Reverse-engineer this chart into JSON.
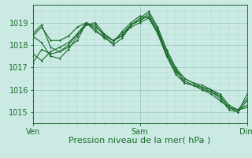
{
  "bg_color": "#cceae4",
  "grid_color_major": "#99ccc4",
  "grid_color_minor": "#aad8d0",
  "line_color": "#1a6b2a",
  "xlabel": "Pression niveau de la mer( hPa )",
  "xtick_labels": [
    "Ven",
    "Sam",
    "Dim"
  ],
  "xtick_positions": [
    0,
    96,
    192
  ],
  "ylim": [
    1014.5,
    1019.8
  ],
  "yticks": [
    1015,
    1016,
    1017,
    1018,
    1019
  ],
  "xlim": [
    0,
    192
  ],
  "lines": [
    [
      0,
      1018.4,
      8,
      1018.8,
      16,
      1018.2,
      24,
      1018.2,
      32,
      1018.4,
      40,
      1018.8,
      48,
      1019.0,
      56,
      1018.7,
      64,
      1018.3,
      72,
      1018.1,
      80,
      1018.6,
      88,
      1019.0,
      96,
      1019.3,
      104,
      1019.2,
      112,
      1018.6,
      120,
      1017.6,
      128,
      1016.9,
      136,
      1016.5,
      144,
      1016.3,
      152,
      1016.2,
      160,
      1016.0,
      168,
      1015.8,
      176,
      1015.3,
      184,
      1015.1,
      192,
      1015.2
    ],
    [
      0,
      1017.6,
      8,
      1017.3,
      16,
      1017.7,
      24,
      1017.9,
      32,
      1018.1,
      40,
      1018.5,
      48,
      1019.0,
      56,
      1018.6,
      64,
      1018.4,
      72,
      1018.2,
      80,
      1018.5,
      88,
      1018.9,
      96,
      1019.2,
      104,
      1019.5,
      112,
      1018.8,
      120,
      1017.8,
      128,
      1017.0,
      136,
      1016.5,
      144,
      1016.3,
      152,
      1016.1,
      160,
      1016.0,
      168,
      1015.7,
      176,
      1015.2,
      184,
      1015.0,
      192,
      1015.5
    ],
    [
      0,
      1018.5,
      8,
      1018.9,
      16,
      1017.9,
      24,
      1017.7,
      32,
      1018.0,
      40,
      1018.5,
      48,
      1018.9,
      56,
      1018.9,
      64,
      1018.4,
      72,
      1018.0,
      80,
      1018.3,
      88,
      1018.9,
      96,
      1019.1,
      104,
      1019.4,
      112,
      1018.7,
      120,
      1017.7,
      128,
      1016.9,
      136,
      1016.3,
      144,
      1016.2,
      152,
      1016.0,
      160,
      1015.9,
      168,
      1015.6,
      176,
      1015.1,
      184,
      1015.0,
      192,
      1015.8
    ],
    [
      0,
      1017.2,
      8,
      1017.8,
      16,
      1017.6,
      24,
      1017.7,
      32,
      1017.9,
      40,
      1018.2,
      48,
      1019.0,
      56,
      1018.8,
      64,
      1018.5,
      72,
      1018.2,
      80,
      1018.4,
      88,
      1018.9,
      96,
      1019.1,
      104,
      1019.3,
      112,
      1018.6,
      120,
      1017.5,
      128,
      1016.8,
      136,
      1016.4,
      144,
      1016.2,
      152,
      1016.1,
      160,
      1015.9,
      168,
      1015.7,
      176,
      1015.2,
      184,
      1015.1,
      192,
      1015.3
    ],
    [
      0,
      1018.4,
      8,
      1018.1,
      16,
      1017.5,
      24,
      1017.4,
      32,
      1017.8,
      40,
      1018.4,
      48,
      1018.9,
      56,
      1019.0,
      64,
      1018.5,
      72,
      1018.2,
      80,
      1018.4,
      88,
      1018.8,
      96,
      1019.0,
      104,
      1019.2,
      112,
      1018.5,
      120,
      1017.5,
      128,
      1016.7,
      136,
      1016.3,
      144,
      1016.2,
      152,
      1016.0,
      160,
      1015.8,
      168,
      1015.5,
      176,
      1015.2,
      184,
      1015.1,
      192,
      1015.6
    ]
  ],
  "figsize": [
    3.2,
    2.0
  ],
  "dpi": 100,
  "xlabel_fontsize": 8,
  "tick_fontsize": 7
}
